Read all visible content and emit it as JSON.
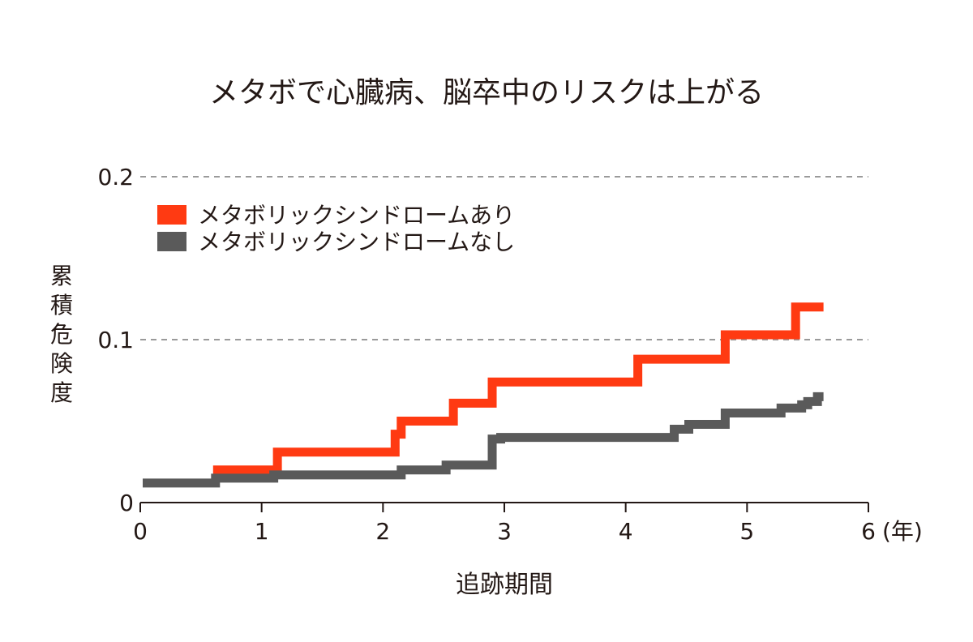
{
  "chart_data": {
    "type": "line",
    "step": true,
    "title": "メタボで心臓病、脳卒中のリスクは上がる",
    "xlabel": "追跡期間",
    "ylabel": "累積危険度",
    "xlim": [
      0,
      6
    ],
    "ylim": [
      0,
      0.2
    ],
    "x_ticks": [
      0,
      1,
      2,
      3,
      4,
      5,
      6
    ],
    "x_tick_labels": [
      "0",
      "1",
      "2",
      "3",
      "4",
      "5",
      "6"
    ],
    "x_unit": "(年)",
    "y_ticks": [
      0,
      0.1,
      0.2
    ],
    "y_tick_labels": [
      "0",
      "0.1",
      "0.2"
    ],
    "grid": "dashed horizontal at 0.1 and 0.2",
    "legend_position": "top-left",
    "series": [
      {
        "name": "メタボリックシンドロームあり",
        "color": "#ff3a12",
        "x": [
          0.6,
          1.13,
          2.1,
          2.15,
          2.58,
          2.9,
          4.1,
          4.82,
          5.4,
          5.63
        ],
        "y": [
          0.02,
          0.031,
          0.042,
          0.05,
          0.061,
          0.074,
          0.088,
          0.103,
          0.12,
          0.12
        ]
      },
      {
        "name": "メタボリックシンドロームなし",
        "color": "#5a5a5a",
        "x": [
          0.02,
          0.62,
          1.1,
          2.15,
          2.52,
          2.9,
          2.97,
          3.1,
          4.4,
          4.52,
          4.82,
          5.1,
          5.28,
          5.45,
          5.5,
          5.58,
          5.63
        ],
        "y": [
          0.012,
          0.015,
          0.017,
          0.02,
          0.023,
          0.039,
          0.04,
          0.04,
          0.045,
          0.048,
          0.055,
          0.055,
          0.058,
          0.06,
          0.062,
          0.065,
          0.065
        ]
      }
    ]
  }
}
